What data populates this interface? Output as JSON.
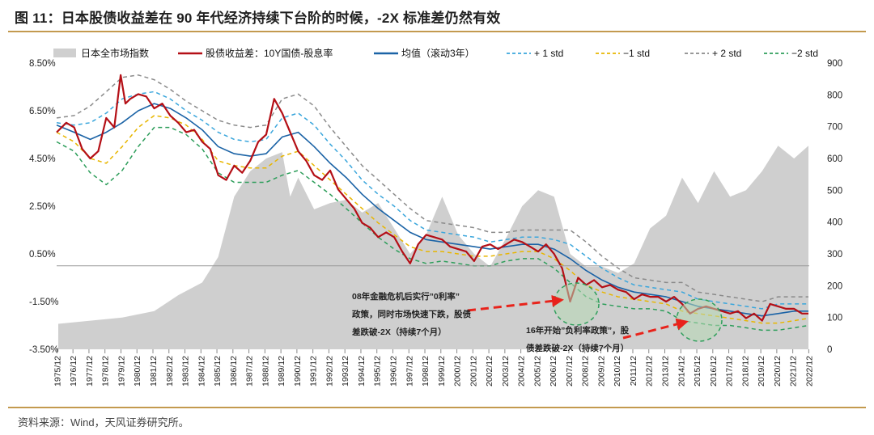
{
  "header": {
    "title": "图 11：日本股债收益差在 90 年代经济持续下台阶的时候，-2X 标准差仍然有效"
  },
  "footer": {
    "source": "资料来源：Wind，天风证券研究所。"
  },
  "annotations": {
    "a1": {
      "lines": [
        "08年金融危机后实行”0利率”",
        "政策，同时市场快速下跌，股债",
        "差跌破-2X（持续7个月）"
      ],
      "arrow_color": "#e8231b"
    },
    "a2": {
      "lines": [
        "16年开始”负利率政策”，股",
        "债差跌破-2X（持续7个月）"
      ],
      "arrow_color": "#e8231b"
    }
  },
  "chart_data": {
    "type": "line",
    "title": "",
    "xlabel": "",
    "ylabel": "",
    "ylim": [
      -3.5,
      8.5
    ],
    "y2lim": [
      0,
      900
    ],
    "yticks": [
      "8.50%",
      "6.50%",
      "4.50%",
      "2.50%",
      "0.50%",
      "-1.50%",
      "-3.50%"
    ],
    "y2ticks": [
      "900",
      "800",
      "700",
      "600",
      "500",
      "400",
      "300",
      "200",
      "100",
      "0"
    ],
    "xticks": [
      "1975/12",
      "1976/12",
      "1977/12",
      "1978/12",
      "1979/12",
      "1980/12",
      "1981/12",
      "1982/12",
      "1983/12",
      "1984/12",
      "1985/12",
      "1986/12",
      "1987/12",
      "1988/12",
      "1989/12",
      "1990/12",
      "1991/12",
      "1992/12",
      "1993/12",
      "1994/12",
      "1995/12",
      "1996/12",
      "1997/12",
      "1998/12",
      "1999/12",
      "2000/12",
      "2001/12",
      "2002/12",
      "2003/12",
      "2004/12",
      "2005/12",
      "2006/12",
      "2007/12",
      "2008/12",
      "2009/12",
      "2010/12",
      "2011/12",
      "2012/12",
      "2013/12",
      "2014/12",
      "2015/12",
      "2016/12",
      "2017/12",
      "2018/12",
      "2019/12",
      "2020/12",
      "2021/12",
      "2022/12"
    ],
    "legend_position": "top",
    "grid": false,
    "series": [
      {
        "name": "日本全市场指数",
        "axis": "right",
        "kind": "area",
        "color": "#cfcfcf",
        "x": [
          1976,
          1978,
          1980,
          1982,
          1983.5,
          1985,
          1986,
          1987,
          1988,
          1989,
          1990,
          1990.5,
          1991,
          1992,
          1993,
          1994,
          1995,
          1996,
          1997,
          1998,
          1999,
          2000,
          2001,
          2002,
          2003,
          2004,
          2005,
          2006,
          2007,
          2008,
          2009,
          2010,
          2011,
          2012,
          2013,
          2014,
          2015,
          2016,
          2017,
          2018,
          2019,
          2020,
          2021,
          2022,
          2022.9
        ],
        "y": [
          80,
          90,
          100,
          120,
          170,
          210,
          290,
          480,
          560,
          600,
          620,
          480,
          540,
          440,
          460,
          470,
          430,
          460,
          380,
          300,
          360,
          480,
          360,
          300,
          260,
          350,
          450,
          500,
          480,
          300,
          260,
          260,
          240,
          270,
          380,
          420,
          540,
          460,
          560,
          480,
          500,
          560,
          640,
          600,
          640
        ]
      },
      {
        "name": "股债收益差：10Y国债-股息率",
        "axis": "left",
        "kind": "line",
        "color": "#b40f16",
        "width": 2.2,
        "x": [
          1975.9,
          1976.5,
          1977,
          1977.5,
          1978,
          1978.5,
          1979,
          1979.5,
          1979.9,
          1980.2,
          1980.5,
          1981,
          1981.5,
          1982,
          1982.5,
          1983,
          1983.5,
          1984,
          1984.5,
          1985,
          1985.5,
          1986,
          1986.5,
          1987,
          1987.5,
          1988,
          1988.5,
          1989,
          1989.5,
          1990,
          1990.5,
          1991,
          1991.5,
          1992,
          1992.5,
          1993,
          1993.5,
          1994,
          1994.5,
          1995,
          1995.5,
          1996,
          1996.5,
          1997,
          1997.5,
          1998,
          1998.5,
          1999,
          1999.5,
          2000,
          2000.5,
          2001,
          2001.5,
          2002,
          2002.5,
          2003,
          2003.5,
          2004,
          2004.5,
          2005,
          2005.5,
          2006,
          2006.5,
          2007,
          2007.5,
          2008,
          2008.5,
          2009,
          2009.5,
          2010,
          2010.5,
          2011,
          2011.5,
          2012,
          2012.5,
          2013,
          2013.5,
          2014,
          2014.5,
          2015,
          2015.5,
          2016,
          2016.5,
          2017,
          2017.5,
          2018,
          2018.5,
          2019,
          2019.5,
          2020,
          2020.5,
          2021,
          2021.5,
          2022,
          2022.5,
          2022.9
        ],
        "y": [
          5.6,
          6.0,
          5.8,
          4.9,
          4.5,
          4.8,
          6.2,
          5.8,
          8.0,
          6.8,
          7.0,
          7.2,
          7.1,
          6.6,
          6.8,
          6.3,
          6.0,
          5.6,
          5.7,
          5.2,
          4.9,
          3.8,
          3.6,
          4.2,
          3.9,
          4.4,
          5.2,
          5.5,
          7.0,
          6.4,
          5.6,
          4.8,
          4.4,
          3.8,
          3.6,
          4.0,
          3.2,
          2.8,
          2.4,
          1.8,
          1.6,
          1.2,
          1.4,
          1.2,
          0.6,
          0.1,
          0.9,
          1.3,
          1.2,
          1.1,
          0.8,
          0.7,
          0.6,
          0.2,
          0.8,
          0.9,
          0.7,
          0.9,
          1.1,
          1.0,
          0.8,
          0.6,
          0.9,
          0.5,
          -0.1,
          -1.5,
          -0.5,
          -0.8,
          -0.6,
          -0.9,
          -0.8,
          -1.0,
          -1.1,
          -1.4,
          -1.2,
          -1.3,
          -1.3,
          -1.5,
          -1.3,
          -1.6,
          -2.0,
          -1.8,
          -1.7,
          -1.8,
          -1.9,
          -2.0,
          -1.9,
          -2.2,
          -2.0,
          -2.3,
          -1.6,
          -1.7,
          -1.8,
          -1.8,
          -2.0,
          -2.0
        ]
      },
      {
        "name": "均值（滚动3年）",
        "axis": "left",
        "kind": "line",
        "color": "#1b63a6",
        "width": 1.6,
        "x": [
          1975.9,
          1977,
          1978,
          1979,
          1980,
          1981,
          1982,
          1983,
          1984,
          1985,
          1986,
          1987,
          1988,
          1989,
          1990,
          1991,
          1992,
          1993,
          1994,
          1995,
          1996,
          1997,
          1998,
          1999,
          2000,
          2001,
          2002,
          2003,
          2004,
          2005,
          2006,
          2007,
          2008,
          2009,
          2010,
          2011,
          2012,
          2013,
          2014,
          2015,
          2016,
          2017,
          2018,
          2019,
          2020,
          2021,
          2022,
          2022.9
        ],
        "y": [
          5.9,
          5.6,
          5.3,
          5.6,
          6.0,
          6.5,
          6.8,
          6.6,
          6.2,
          5.7,
          5.0,
          4.7,
          4.6,
          4.7,
          5.4,
          5.6,
          5.0,
          4.3,
          3.7,
          3.0,
          2.4,
          1.9,
          1.4,
          1.1,
          1.0,
          0.9,
          0.8,
          0.7,
          0.8,
          0.9,
          0.9,
          0.7,
          0.3,
          -0.2,
          -0.6,
          -0.9,
          -1.1,
          -1.2,
          -1.3,
          -1.5,
          -1.7,
          -1.8,
          -1.9,
          -2.0,
          -2.1,
          -2.0,
          -1.9,
          -1.9
        ]
      },
      {
        "name": "+ 1 std",
        "axis": "left",
        "kind": "line",
        "dash": "5,4",
        "color": "#3aa6dc",
        "width": 1.5,
        "x": [
          1975.9,
          1977,
          1978,
          1979,
          1980,
          1981,
          1982,
          1983,
          1984,
          1985,
          1986,
          1987,
          1988,
          1989,
          1990,
          1991,
          1992,
          1993,
          1994,
          1995,
          1996,
          1997,
          1998,
          1999,
          2000,
          2001,
          2002,
          2003,
          2004,
          2005,
          2006,
          2007,
          2008,
          2009,
          2010,
          2011,
          2012,
          2013,
          2014,
          2015,
          2016,
          2017,
          2018,
          2019,
          2020,
          2021,
          2022,
          2022.9
        ],
        "y": [
          6.0,
          5.9,
          6.0,
          6.4,
          7.0,
          7.2,
          7.3,
          7.0,
          6.5,
          6.1,
          5.6,
          5.3,
          5.2,
          5.3,
          6.2,
          6.4,
          5.9,
          5.1,
          4.4,
          3.6,
          3.0,
          2.5,
          1.9,
          1.5,
          1.4,
          1.3,
          1.2,
          1.0,
          1.1,
          1.2,
          1.2,
          1.1,
          0.9,
          0.4,
          -0.1,
          -0.5,
          -0.8,
          -0.9,
          -1.0,
          -1.1,
          -1.4,
          -1.5,
          -1.6,
          -1.7,
          -1.8,
          -1.6,
          -1.6,
          -1.6
        ]
      },
      {
        "name": "−1 std",
        "axis": "left",
        "kind": "line",
        "dash": "5,4",
        "color": "#e8b600",
        "width": 1.5,
        "x": [
          1975.9,
          1977,
          1978,
          1979,
          1980,
          1981,
          1982,
          1983,
          1984,
          1985,
          1986,
          1987,
          1988,
          1989,
          1990,
          1991,
          1992,
          1993,
          1994,
          1995,
          1996,
          1997,
          1998,
          1999,
          2000,
          2001,
          2002,
          2003,
          2004,
          2005,
          2006,
          2007,
          2008,
          2009,
          2010,
          2011,
          2012,
          2013,
          2014,
          2015,
          2016,
          2017,
          2018,
          2019,
          2020,
          2021,
          2022,
          2022.9
        ],
        "y": [
          5.6,
          5.2,
          4.5,
          4.3,
          5.0,
          5.8,
          6.3,
          6.2,
          5.9,
          5.3,
          4.4,
          4.2,
          4.1,
          4.1,
          4.6,
          4.8,
          4.2,
          3.6,
          3.0,
          2.4,
          1.8,
          1.3,
          0.8,
          0.6,
          0.6,
          0.5,
          0.4,
          0.4,
          0.5,
          0.6,
          0.6,
          0.3,
          -0.2,
          -0.8,
          -1.1,
          -1.3,
          -1.4,
          -1.5,
          -1.6,
          -1.9,
          -2.0,
          -2.1,
          -2.2,
          -2.3,
          -2.4,
          -2.4,
          -2.3,
          -2.2
        ]
      },
      {
        "name": "+ 2 std",
        "axis": "left",
        "kind": "line",
        "dash": "5,4",
        "color": "#8a8a8a",
        "width": 1.5,
        "x": [
          1975.9,
          1977,
          1978,
          1979,
          1980,
          1981,
          1982,
          1983,
          1984,
          1985,
          1986,
          1987,
          1988,
          1989,
          1990,
          1991,
          1992,
          1993,
          1994,
          1995,
          1996,
          1997,
          1998,
          1999,
          2000,
          2001,
          2002,
          2003,
          2004,
          2005,
          2006,
          2007,
          2008,
          2009,
          2010,
          2011,
          2012,
          2013,
          2014,
          2015,
          2016,
          2017,
          2018,
          2019,
          2020,
          2021,
          2022,
          2022.9
        ],
        "y": [
          6.2,
          6.3,
          6.7,
          7.3,
          7.9,
          8.0,
          7.8,
          7.4,
          6.9,
          6.5,
          6.1,
          5.9,
          5.8,
          5.9,
          7.0,
          7.2,
          6.7,
          5.8,
          5.0,
          4.2,
          3.6,
          3.0,
          2.4,
          1.9,
          1.8,
          1.7,
          1.6,
          1.4,
          1.4,
          1.5,
          1.5,
          1.5,
          1.5,
          1.0,
          0.4,
          -0.1,
          -0.5,
          -0.6,
          -0.7,
          -0.7,
          -1.1,
          -1.2,
          -1.3,
          -1.4,
          -1.5,
          -1.3,
          -1.3,
          -1.3
        ]
      },
      {
        "name": "−2 std",
        "axis": "left",
        "kind": "line",
        "dash": "5,4",
        "color": "#2e9e5b",
        "width": 1.5,
        "x": [
          1975.9,
          1977,
          1978,
          1979,
          1980,
          1981,
          1982,
          1983,
          1984,
          1985,
          1986,
          1987,
          1988,
          1989,
          1990,
          1991,
          1992,
          1993,
          1994,
          1995,
          1996,
          1997,
          1998,
          1999,
          2000,
          2001,
          2002,
          2003,
          2004,
          2005,
          2006,
          2007,
          2008,
          2009,
          2010,
          2011,
          2012,
          2013,
          2014,
          2015,
          2016,
          2017,
          2018,
          2019,
          2020,
          2021,
          2022,
          2022.9
        ],
        "y": [
          5.2,
          4.8,
          3.9,
          3.4,
          4.0,
          5.0,
          5.8,
          5.8,
          5.5,
          4.9,
          3.9,
          3.5,
          3.5,
          3.5,
          3.8,
          4.0,
          3.5,
          3.0,
          2.4,
          1.8,
          1.2,
          0.7,
          0.3,
          0.1,
          0.2,
          0.1,
          0.0,
          0.0,
          0.2,
          0.3,
          0.3,
          -0.1,
          -0.7,
          -1.3,
          -1.6,
          -1.7,
          -1.8,
          -1.8,
          -1.9,
          -2.3,
          -2.4,
          -2.5,
          -2.5,
          -2.6,
          -2.7,
          -2.7,
          -2.6,
          -2.5
        ]
      }
    ]
  }
}
